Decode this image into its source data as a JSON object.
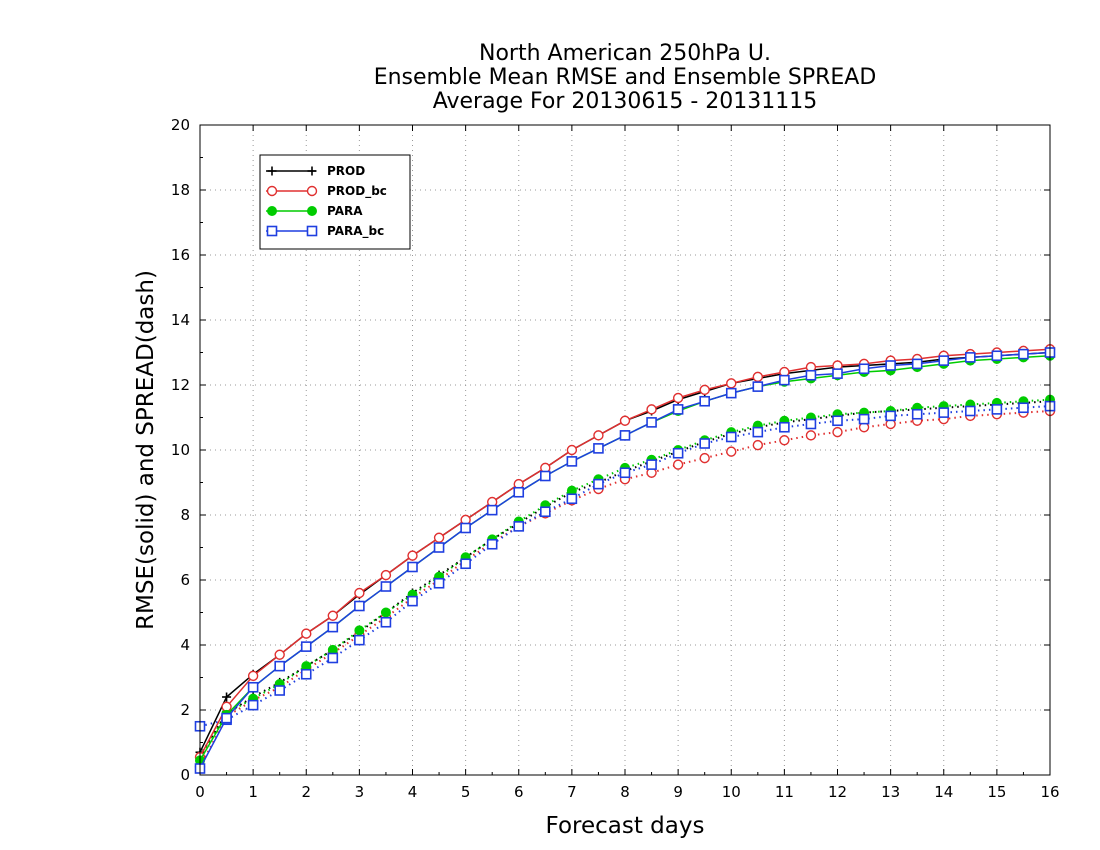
{
  "chart_data": {
    "type": "line",
    "title": [
      "North American 250hPa U.",
      "Ensemble Mean RMSE and Ensemble SPREAD",
      "Average For 20130615 - 20131115"
    ],
    "xlabel": "Forecast days",
    "ylabel": "RMSE(solid) and SPREAD(dash)",
    "xlim": [
      0,
      16
    ],
    "ylim": [
      0,
      20
    ],
    "xticks": [
      0,
      1,
      2,
      3,
      4,
      5,
      6,
      7,
      8,
      9,
      10,
      11,
      12,
      13,
      14,
      15,
      16
    ],
    "yticks": [
      0,
      2,
      4,
      6,
      8,
      10,
      12,
      14,
      16,
      18,
      20
    ],
    "grid": true,
    "legend_position": "top-left",
    "x": [
      0,
      0.5,
      1,
      1.5,
      2,
      2.5,
      3,
      3.5,
      4,
      4.5,
      5,
      5.5,
      6,
      6.5,
      7,
      7.5,
      8,
      8.5,
      9,
      9.5,
      10,
      10.5,
      11,
      11.5,
      12,
      12.5,
      13,
      13.5,
      14,
      14.5,
      15,
      15.5,
      16
    ],
    "series": [
      {
        "name": "PROD",
        "color": "#000000",
        "marker": "plus",
        "rmse": [
          0.7,
          2.4,
          3.1,
          3.7,
          4.35,
          4.9,
          5.55,
          6.15,
          6.75,
          7.3,
          7.85,
          8.4,
          8.95,
          9.45,
          10.0,
          10.45,
          10.9,
          11.2,
          11.55,
          11.8,
          12.05,
          12.2,
          12.35,
          12.45,
          12.55,
          12.6,
          12.65,
          12.7,
          12.8,
          12.85,
          12.9,
          12.95,
          13.0
        ],
        "spread": [
          0.6,
          1.9,
          2.4,
          2.85,
          3.35,
          3.85,
          4.4,
          5.0,
          5.6,
          6.15,
          6.7,
          7.25,
          7.75,
          8.25,
          8.7,
          9.0,
          9.35,
          9.65,
          9.95,
          10.25,
          10.5,
          10.7,
          10.85,
          10.95,
          11.05,
          11.15,
          11.2,
          11.25,
          11.3,
          11.35,
          11.4,
          11.45,
          11.5
        ]
      },
      {
        "name": "PROD_bc",
        "color": "#e03030",
        "marker": "circle",
        "rmse": [
          0.55,
          2.1,
          3.05,
          3.7,
          4.35,
          4.9,
          5.6,
          6.15,
          6.75,
          7.3,
          7.85,
          8.4,
          8.95,
          9.45,
          10.0,
          10.45,
          10.9,
          11.25,
          11.6,
          11.85,
          12.05,
          12.25,
          12.4,
          12.55,
          12.6,
          12.65,
          12.75,
          12.8,
          12.9,
          12.95,
          13.0,
          13.05,
          13.1
        ],
        "spread": [
          0.25,
          1.8,
          2.3,
          2.7,
          3.25,
          3.75,
          4.3,
          4.85,
          5.45,
          6.0,
          6.6,
          7.15,
          7.65,
          8.05,
          8.45,
          8.8,
          9.1,
          9.3,
          9.55,
          9.75,
          9.95,
          10.15,
          10.3,
          10.45,
          10.55,
          10.7,
          10.8,
          10.9,
          10.95,
          11.05,
          11.1,
          11.15,
          11.2
        ]
      },
      {
        "name": "PARA",
        "color": "#00cc00",
        "marker": "filled-circle",
        "rmse": [
          0.45,
          1.85,
          2.7,
          3.35,
          3.95,
          4.55,
          5.2,
          5.8,
          6.4,
          7.0,
          7.6,
          8.15,
          8.7,
          9.2,
          9.65,
          10.05,
          10.45,
          10.85,
          11.2,
          11.5,
          11.75,
          11.95,
          12.1,
          12.2,
          12.3,
          12.4,
          12.45,
          12.55,
          12.65,
          12.75,
          12.8,
          12.85,
          12.9
        ],
        "spread": [
          0.55,
          1.9,
          2.35,
          2.8,
          3.35,
          3.85,
          4.45,
          5.0,
          5.55,
          6.1,
          6.7,
          7.25,
          7.8,
          8.3,
          8.75,
          9.1,
          9.45,
          9.7,
          10.0,
          10.3,
          10.55,
          10.75,
          10.9,
          11.0,
          11.1,
          11.15,
          11.2,
          11.3,
          11.35,
          11.4,
          11.45,
          11.5,
          11.55
        ]
      },
      {
        "name": "PARA_bc",
        "color": "#1f3fe0",
        "marker": "square",
        "rmse": [
          0.2,
          1.75,
          2.7,
          3.35,
          3.95,
          4.55,
          5.2,
          5.8,
          6.4,
          7.0,
          7.6,
          8.15,
          8.7,
          9.2,
          9.65,
          10.05,
          10.45,
          10.85,
          11.25,
          11.5,
          11.75,
          11.95,
          12.15,
          12.3,
          12.35,
          12.5,
          12.6,
          12.65,
          12.75,
          12.85,
          12.9,
          12.95,
          13.0
        ],
        "spread": [
          1.5,
          1.7,
          2.15,
          2.6,
          3.1,
          3.6,
          4.15,
          4.7,
          5.35,
          5.9,
          6.5,
          7.1,
          7.65,
          8.1,
          8.5,
          8.95,
          9.3,
          9.55,
          9.9,
          10.2,
          10.4,
          10.55,
          10.7,
          10.8,
          10.9,
          10.95,
          11.05,
          11.1,
          11.15,
          11.2,
          11.25,
          11.3,
          11.35
        ]
      }
    ]
  }
}
